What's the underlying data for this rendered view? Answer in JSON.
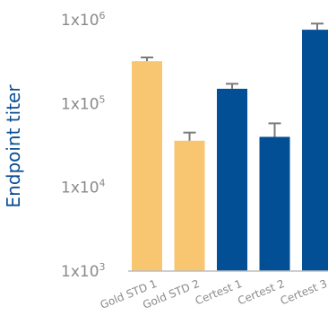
{
  "chart_data": {
    "type": "bar",
    "title": "",
    "xlabel": "",
    "ylabel": "Endpoint titer",
    "yscale": "log",
    "ylim": [
      1000,
      1000000
    ],
    "yticks": [
      {
        "value": 1000,
        "base": "1x10",
        "exp": "3"
      },
      {
        "value": 10000,
        "base": "1x10",
        "exp": "4"
      },
      {
        "value": 100000,
        "base": "1x10",
        "exp": "5"
      },
      {
        "value": 1000000,
        "base": "1x10",
        "exp": "6"
      }
    ],
    "grid": false,
    "categories": [
      "Gold STD 1",
      "Gold STD 2",
      "Certest 1",
      "Certest 2",
      "Certest 3"
    ],
    "values": [
      320000,
      36000,
      150000,
      40000,
      760000
    ],
    "error_upper": [
      355000,
      45000,
      172000,
      58000,
      900000
    ],
    "bar_colors": [
      "#f8c571",
      "#f8c571",
      "#024f96",
      "#024f96",
      "#024f96"
    ],
    "error_color": "#7a7a7a",
    "axis_color": "#bdbdbd"
  }
}
